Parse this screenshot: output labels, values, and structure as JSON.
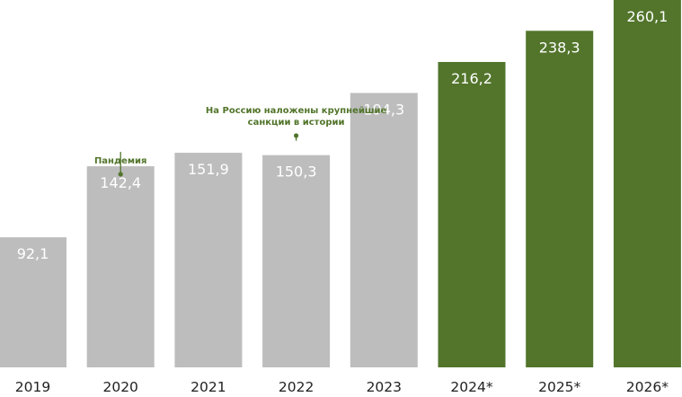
{
  "chart_data": {
    "type": "bar",
    "title": "",
    "xlabel": "",
    "ylabel": "",
    "categories": [
      "2019",
      "2020",
      "2021",
      "2022",
      "2023",
      "2024*",
      "2025*",
      "2026*"
    ],
    "values": [
      92.1,
      142.4,
      151.9,
      150.3,
      194.3,
      216.2,
      238.3,
      260.1
    ],
    "value_labels": [
      "92,1",
      "142,4",
      "151,9",
      "150,3",
      "194,3",
      "216,2",
      "238,3",
      "260,1"
    ],
    "ylim": [
      0,
      260.1
    ],
    "grid": false,
    "legend": "none",
    "colors": {
      "actual": "#bdbdbd",
      "forecast": "#52752b",
      "annotation": "#52752b"
    },
    "forecast_categories": [
      "2024*",
      "2025*",
      "2026*"
    ],
    "annotations": [
      {
        "category": "2020",
        "lines": [
          "Пандемия"
        ]
      },
      {
        "category": "2022",
        "lines": [
          "На Россию наложены крупнейшие",
          "санкции в истории"
        ]
      }
    ]
  }
}
